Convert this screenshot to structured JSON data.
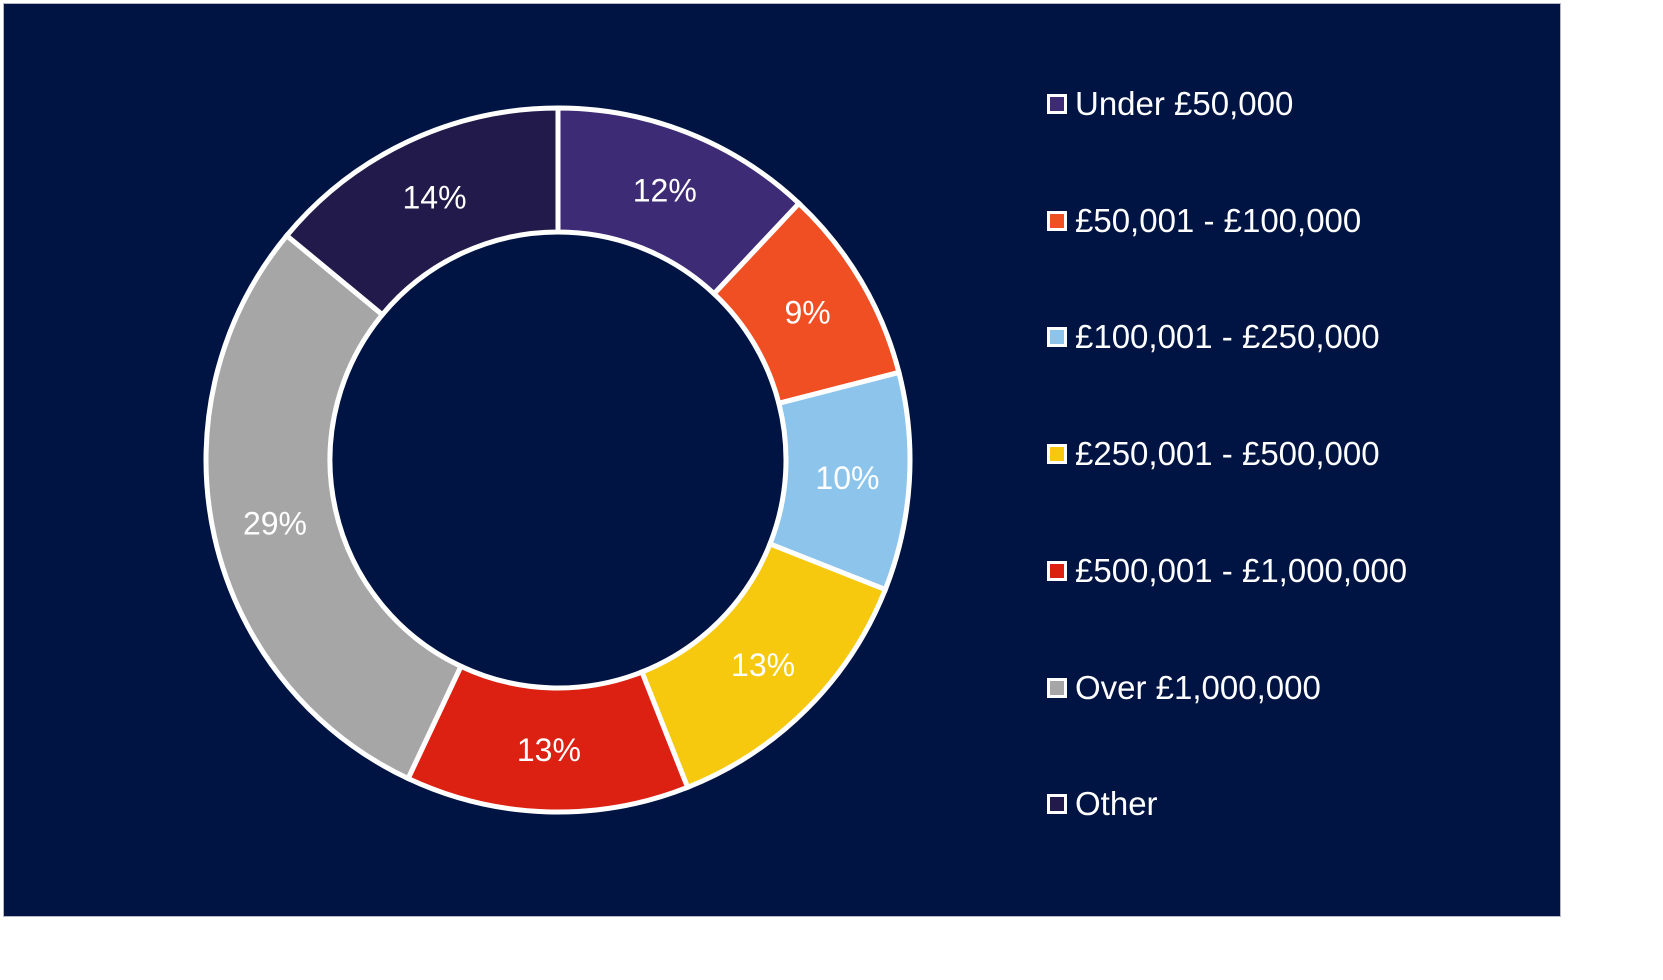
{
  "chart_data": {
    "type": "pie",
    "style": "donut",
    "title": "",
    "categories": [
      "Under £50,000",
      "£50,001 - £100,000",
      "£100,001 - £250,000",
      "£250,001 - £500,000",
      "£500,001 - £1,000,000",
      "Over £1,000,000",
      "Other"
    ],
    "values": [
      12,
      9,
      10,
      13,
      13,
      29,
      14
    ],
    "data_labels": [
      "12%",
      "9%",
      "10%",
      "13%",
      "13%",
      "29%",
      "14%"
    ],
    "colors": [
      "#3d2b75",
      "#f04e23",
      "#8cc4ec",
      "#f6c90e",
      "#dc2112",
      "#a6a6a6",
      "#221a4a"
    ],
    "legend_position": "right",
    "background": "#001443",
    "slice_border": "#ffffff"
  }
}
